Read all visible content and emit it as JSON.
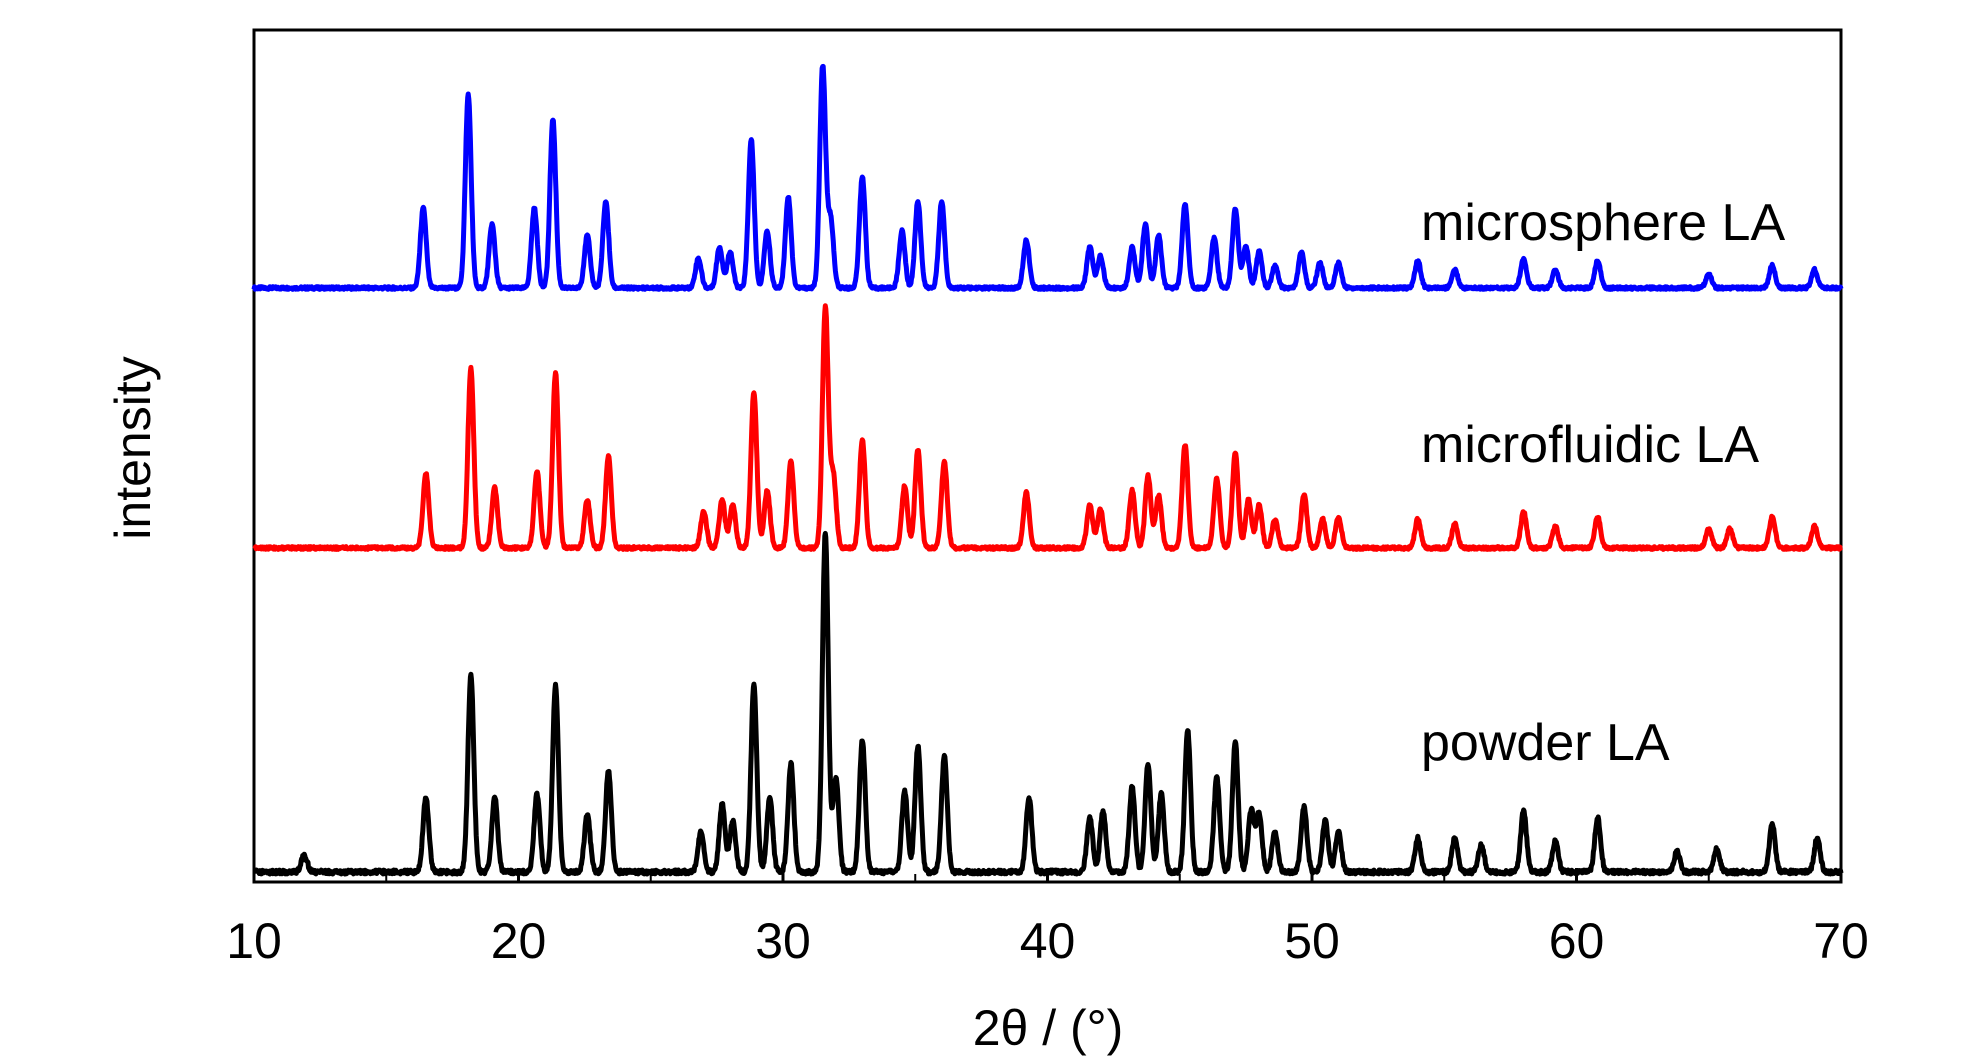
{
  "chart_data": {
    "type": "line",
    "xlabel": "2θ / (°)",
    "ylabel": "intensity",
    "xlim": [
      10,
      70
    ],
    "x_ticks": [
      10,
      20,
      30,
      40,
      50,
      60,
      70
    ],
    "y_ticks_shown": false,
    "grid": false,
    "legend": "none",
    "series": [
      {
        "name": "microsphere LA",
        "color": "#0000ff",
        "stacking_order": "top",
        "peaks_rel_intensity": [
          [
            16.4,
            0.35
          ],
          [
            18.1,
            0.85
          ],
          [
            19.0,
            0.28
          ],
          [
            20.6,
            0.35
          ],
          [
            21.3,
            0.74
          ],
          [
            22.6,
            0.23
          ],
          [
            23.3,
            0.38
          ],
          [
            26.8,
            0.13
          ],
          [
            27.6,
            0.18
          ],
          [
            28.0,
            0.16
          ],
          [
            28.8,
            0.65
          ],
          [
            29.4,
            0.25
          ],
          [
            30.2,
            0.4
          ],
          [
            31.5,
            0.97
          ],
          [
            31.8,
            0.3
          ],
          [
            33.0,
            0.49
          ],
          [
            34.5,
            0.25
          ],
          [
            35.1,
            0.38
          ],
          [
            36.0,
            0.38
          ],
          [
            39.2,
            0.21
          ],
          [
            41.6,
            0.18
          ],
          [
            42.0,
            0.14
          ],
          [
            43.2,
            0.18
          ],
          [
            43.7,
            0.28
          ],
          [
            44.2,
            0.23
          ],
          [
            45.2,
            0.37
          ],
          [
            46.3,
            0.22
          ],
          [
            47.1,
            0.35
          ],
          [
            47.5,
            0.18
          ],
          [
            48.0,
            0.16
          ],
          [
            48.6,
            0.1
          ],
          [
            49.6,
            0.16
          ],
          [
            50.3,
            0.11
          ],
          [
            51.0,
            0.11
          ],
          [
            54.0,
            0.12
          ],
          [
            55.4,
            0.08
          ],
          [
            58.0,
            0.13
          ],
          [
            59.2,
            0.08
          ],
          [
            60.8,
            0.12
          ],
          [
            65.0,
            0.06
          ],
          [
            67.4,
            0.1
          ],
          [
            69.0,
            0.08
          ]
        ]
      },
      {
        "name": "microfluidic LA",
        "color": "#ff0000",
        "stacking_order": "middle",
        "peaks_rel_intensity": [
          [
            16.5,
            0.31
          ],
          [
            18.2,
            0.75
          ],
          [
            19.1,
            0.25
          ],
          [
            20.7,
            0.32
          ],
          [
            21.4,
            0.73
          ],
          [
            22.6,
            0.2
          ],
          [
            23.4,
            0.38
          ],
          [
            27.0,
            0.15
          ],
          [
            27.7,
            0.2
          ],
          [
            28.1,
            0.18
          ],
          [
            28.9,
            0.65
          ],
          [
            29.4,
            0.24
          ],
          [
            30.3,
            0.36
          ],
          [
            31.6,
            1.0
          ],
          [
            31.9,
            0.3
          ],
          [
            33.0,
            0.45
          ],
          [
            34.6,
            0.26
          ],
          [
            35.1,
            0.41
          ],
          [
            36.1,
            0.36
          ],
          [
            39.2,
            0.23
          ],
          [
            41.6,
            0.18
          ],
          [
            42.0,
            0.16
          ],
          [
            43.2,
            0.24
          ],
          [
            43.8,
            0.3
          ],
          [
            44.2,
            0.22
          ],
          [
            45.2,
            0.43
          ],
          [
            46.4,
            0.29
          ],
          [
            47.1,
            0.4
          ],
          [
            47.6,
            0.2
          ],
          [
            48.0,
            0.18
          ],
          [
            48.6,
            0.12
          ],
          [
            49.7,
            0.22
          ],
          [
            50.4,
            0.12
          ],
          [
            51.0,
            0.13
          ],
          [
            54.0,
            0.12
          ],
          [
            55.4,
            0.1
          ],
          [
            58.0,
            0.15
          ],
          [
            59.2,
            0.09
          ],
          [
            60.8,
            0.13
          ],
          [
            65.0,
            0.08
          ],
          [
            65.8,
            0.08
          ],
          [
            67.4,
            0.13
          ],
          [
            69.0,
            0.09
          ]
        ]
      },
      {
        "name": "powder LA",
        "color": "#000000",
        "stacking_order": "bottom",
        "peaks_rel_intensity": [
          [
            11.9,
            0.05
          ],
          [
            16.5,
            0.22
          ],
          [
            18.2,
            0.58
          ],
          [
            19.1,
            0.22
          ],
          [
            20.7,
            0.23
          ],
          [
            21.4,
            0.55
          ],
          [
            22.6,
            0.17
          ],
          [
            23.4,
            0.3
          ],
          [
            26.9,
            0.12
          ],
          [
            27.7,
            0.2
          ],
          [
            28.1,
            0.15
          ],
          [
            28.9,
            0.55
          ],
          [
            29.5,
            0.22
          ],
          [
            30.3,
            0.32
          ],
          [
            31.6,
            1.0
          ],
          [
            32.0,
            0.28
          ],
          [
            33.0,
            0.39
          ],
          [
            34.6,
            0.24
          ],
          [
            35.1,
            0.37
          ],
          [
            36.1,
            0.34
          ],
          [
            39.3,
            0.22
          ],
          [
            41.6,
            0.16
          ],
          [
            42.1,
            0.18
          ],
          [
            43.2,
            0.25
          ],
          [
            43.8,
            0.32
          ],
          [
            44.3,
            0.23
          ],
          [
            45.3,
            0.42
          ],
          [
            46.4,
            0.28
          ],
          [
            47.1,
            0.38
          ],
          [
            47.7,
            0.18
          ],
          [
            48.0,
            0.17
          ],
          [
            48.6,
            0.12
          ],
          [
            49.7,
            0.19
          ],
          [
            50.5,
            0.15
          ],
          [
            51.0,
            0.12
          ],
          [
            54.0,
            0.1
          ],
          [
            55.4,
            0.1
          ],
          [
            56.4,
            0.08
          ],
          [
            58.0,
            0.18
          ],
          [
            59.2,
            0.09
          ],
          [
            60.8,
            0.16
          ],
          [
            63.8,
            0.06
          ],
          [
            65.3,
            0.07
          ],
          [
            67.4,
            0.14
          ],
          [
            69.1,
            0.1
          ]
        ]
      }
    ],
    "series_labels": [
      "microsphere LA",
      "microfluidic LA",
      "powder LA"
    ]
  }
}
